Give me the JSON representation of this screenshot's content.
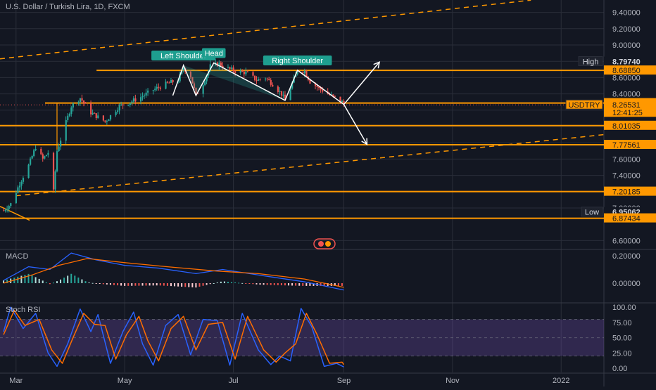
{
  "symbol_title": "U.S. Dollar / Turkish Lira, 1D, FXCM",
  "colors": {
    "background": "#131722",
    "orange": "#ff9800",
    "up": "#26a69a",
    "down": "#ef5350",
    "macd": "#2962ff",
    "signal": "#ff6d00",
    "stoch_k": "#2962ff",
    "stoch_d": "#ff6d00",
    "rsi_band": "#7e57c2",
    "grid": "#2a2e39",
    "pattern": "#ffffff",
    "label_bg": "#1e9e8f"
  },
  "chart_data": [
    {
      "type": "candlestick",
      "title": "U.S. Dollar / Turkish Lira, 1D, FXCM",
      "x_range": [
        "2021-02-20",
        "2022-01-25"
      ],
      "x_tick_labels": [
        "Mar",
        "May",
        "Jul",
        "Sep",
        "Nov",
        "2022"
      ],
      "x_tick_dates": [
        "2021-03-01",
        "2021-05-01",
        "2021-07-01",
        "2021-09-01",
        "2021-11-01",
        "2022-01-01"
      ],
      "ylim": [
        6.5,
        9.5
      ],
      "y_tick_labels": [
        "6.60000",
        "7.00000",
        "7.20000",
        "7.40000",
        "7.60000",
        "7.80000",
        "8.00000",
        "8.20000",
        "8.40000",
        "8.60000",
        "8.80000",
        "9.00000",
        "9.20000",
        "9.40000"
      ],
      "price_path": [
        [
          "2021-02-22",
          6.97
        ],
        [
          "2021-02-26",
          7.05
        ],
        [
          "2021-03-03",
          7.3
        ],
        [
          "2021-03-08",
          7.52
        ],
        [
          "2021-03-12",
          7.75
        ],
        [
          "2021-03-16",
          7.6
        ],
        [
          "2021-03-19",
          7.68
        ],
        [
          "2021-03-22",
          7.2
        ],
        [
          "2021-03-24",
          7.7
        ],
        [
          "2021-03-29",
          8.05
        ],
        [
          "2021-04-01",
          8.25
        ],
        [
          "2021-04-06",
          8.35
        ],
        [
          "2021-04-12",
          8.17
        ],
        [
          "2021-04-20",
          8.06
        ],
        [
          "2021-04-28",
          8.25
        ],
        [
          "2021-05-04",
          8.3
        ],
        [
          "2021-05-10",
          8.36
        ],
        [
          "2021-05-17",
          8.45
        ],
        [
          "2021-05-24",
          8.52
        ],
        [
          "2021-05-31",
          8.57
        ],
        [
          "2021-06-03",
          8.72
        ],
        [
          "2021-06-07",
          8.62
        ],
        [
          "2021-06-10",
          8.38
        ],
        [
          "2021-06-14",
          8.53
        ],
        [
          "2021-06-18",
          8.74
        ],
        [
          "2021-06-23",
          8.77
        ],
        [
          "2021-06-28",
          8.71
        ],
        [
          "2021-07-02",
          8.68
        ],
        [
          "2021-07-08",
          8.66
        ],
        [
          "2021-07-14",
          8.57
        ],
        [
          "2021-07-19",
          8.6
        ],
        [
          "2021-07-23",
          8.52
        ],
        [
          "2021-07-28",
          8.4
        ],
        [
          "2021-07-30",
          8.32
        ],
        [
          "2021-08-03",
          8.53
        ],
        [
          "2021-08-06",
          8.68
        ],
        [
          "2021-08-10",
          8.68
        ],
        [
          "2021-08-13",
          8.55
        ],
        [
          "2021-08-18",
          8.47
        ],
        [
          "2021-08-23",
          8.4
        ],
        [
          "2021-08-27",
          8.35
        ],
        [
          "2021-08-31",
          8.3
        ],
        [
          "2021-09-01",
          8.27
        ]
      ],
      "horizontal_levels": [
        8.6885,
        8.28817,
        8.01035,
        7.77561,
        7.20185,
        6.87434
      ],
      "price_labels": [
        "8.79740",
        "8.68850",
        "8.28817",
        "8.26531",
        "12:41:25",
        "8.01035",
        "7.77561",
        "7.20185",
        "6.95062",
        "6.87434"
      ],
      "high_label": "High",
      "low_label": "Low",
      "high_value": 8.7974,
      "low_value": 6.95062,
      "symbol_label": "USDTRY",
      "last_price": 8.26531,
      "countdown": "12:41:25",
      "channel_upper": [
        [
          "2021-02-20",
          8.83
        ],
        [
          "2021-12-15",
          9.55
        ]
      ],
      "channel_lower": [
        [
          "2021-03-01",
          7.15
        ],
        [
          "2022-01-25",
          7.9
        ]
      ],
      "pattern_annotations": [
        "Left Shoulder",
        "Head",
        "Right Shoulder"
      ],
      "pattern_points": [
        [
          "2021-05-28",
          8.38
        ],
        [
          "2021-06-03",
          8.75
        ],
        [
          "2021-06-10",
          8.38
        ],
        [
          "2021-06-20",
          8.78
        ],
        [
          "2021-07-30",
          8.32
        ],
        [
          "2021-08-06",
          8.69
        ],
        [
          "2021-09-01",
          8.27
        ]
      ],
      "projection_arrows": [
        [
          [
            "2021-09-01",
            8.27
          ],
          [
            "2021-09-21",
            8.79
          ]
        ],
        [
          [
            "2021-09-01",
            8.27
          ],
          [
            "2021-09-14",
            7.78
          ]
        ]
      ]
    },
    {
      "type": "line",
      "title": "MACD",
      "ylim": [
        -0.1,
        0.25
      ],
      "y_tick_labels": [
        "0.00000",
        "0.20000"
      ],
      "series": [
        {
          "name": "MACD",
          "points": [
            [
              "2021-02-22",
              0.02
            ],
            [
              "2021-03-08",
              0.12
            ],
            [
              "2021-03-20",
              0.1
            ],
            [
              "2021-04-01",
              0.22
            ],
            [
              "2021-04-15",
              0.17
            ],
            [
              "2021-05-01",
              0.13
            ],
            [
              "2021-05-20",
              0.11
            ],
            [
              "2021-06-10",
              0.07
            ],
            [
              "2021-06-25",
              0.1
            ],
            [
              "2021-07-20",
              0.05
            ],
            [
              "2021-08-10",
              0.01
            ],
            [
              "2021-09-01",
              -0.05
            ]
          ]
        },
        {
          "name": "Signal",
          "points": [
            [
              "2021-02-22",
              0.0
            ],
            [
              "2021-03-10",
              0.06
            ],
            [
              "2021-03-25",
              0.13
            ],
            [
              "2021-04-10",
              0.18
            ],
            [
              "2021-05-01",
              0.15
            ],
            [
              "2021-05-25",
              0.12
            ],
            [
              "2021-06-20",
              0.09
            ],
            [
              "2021-07-15",
              0.07
            ],
            [
              "2021-08-10",
              0.03
            ],
            [
              "2021-09-01",
              -0.03
            ]
          ]
        }
      ]
    },
    {
      "type": "line",
      "title": "Stoch RSI",
      "ylim": [
        0,
        100
      ],
      "y_tick_labels": [
        "0.00",
        "25.00",
        "50.00",
        "75.00",
        "100.00"
      ],
      "band": [
        20,
        80
      ],
      "series": [
        {
          "name": "K",
          "points": [
            [
              "2021-02-22",
              60
            ],
            [
              "2021-02-26",
              100
            ],
            [
              "2021-03-05",
              65
            ],
            [
              "2021-03-12",
              90
            ],
            [
              "2021-03-19",
              25
            ],
            [
              "2021-03-24",
              3
            ],
            [
              "2021-03-30",
              40
            ],
            [
              "2021-04-06",
              97
            ],
            [
              "2021-04-12",
              60
            ],
            [
              "2021-04-16",
              88
            ],
            [
              "2021-04-23",
              8
            ],
            [
              "2021-04-30",
              60
            ],
            [
              "2021-05-06",
              92
            ],
            [
              "2021-05-11",
              40
            ],
            [
              "2021-05-17",
              5
            ],
            [
              "2021-05-24",
              70
            ],
            [
              "2021-05-31",
              88
            ],
            [
              "2021-06-07",
              22
            ],
            [
              "2021-06-14",
              80
            ],
            [
              "2021-06-22",
              78
            ],
            [
              "2021-06-29",
              5
            ],
            [
              "2021-07-06",
              90
            ],
            [
              "2021-07-15",
              30
            ],
            [
              "2021-07-22",
              6
            ],
            [
              "2021-07-27",
              20
            ],
            [
              "2021-08-02",
              12
            ],
            [
              "2021-08-08",
              98
            ],
            [
              "2021-08-14",
              68
            ],
            [
              "2021-08-21",
              3
            ],
            [
              "2021-08-28",
              8
            ],
            [
              "2021-09-01",
              2
            ]
          ]
        },
        {
          "name": "D",
          "points": [
            [
              "2021-02-22",
              55
            ],
            [
              "2021-02-28",
              95
            ],
            [
              "2021-03-06",
              70
            ],
            [
              "2021-03-14",
              80
            ],
            [
              "2021-03-21",
              30
            ],
            [
              "2021-03-27",
              8
            ],
            [
              "2021-04-02",
              50
            ],
            [
              "2021-04-08",
              90
            ],
            [
              "2021-04-14",
              72
            ],
            [
              "2021-04-20",
              70
            ],
            [
              "2021-04-26",
              15
            ],
            [
              "2021-05-02",
              55
            ],
            [
              "2021-05-09",
              85
            ],
            [
              "2021-05-14",
              45
            ],
            [
              "2021-05-20",
              12
            ],
            [
              "2021-05-27",
              65
            ],
            [
              "2021-06-03",
              85
            ],
            [
              "2021-06-10",
              30
            ],
            [
              "2021-06-17",
              72
            ],
            [
              "2021-06-25",
              75
            ],
            [
              "2021-07-02",
              15
            ],
            [
              "2021-07-09",
              85
            ],
            [
              "2021-07-18",
              30
            ],
            [
              "2021-07-25",
              10
            ],
            [
              "2021-07-30",
              25
            ],
            [
              "2021-08-05",
              40
            ],
            [
              "2021-08-11",
              90
            ],
            [
              "2021-08-17",
              55
            ],
            [
              "2021-08-24",
              8
            ],
            [
              "2021-08-31",
              10
            ],
            [
              "2021-09-01",
              6
            ]
          ]
        }
      ]
    }
  ],
  "watermark_icon": "tradingview-logo-icon"
}
